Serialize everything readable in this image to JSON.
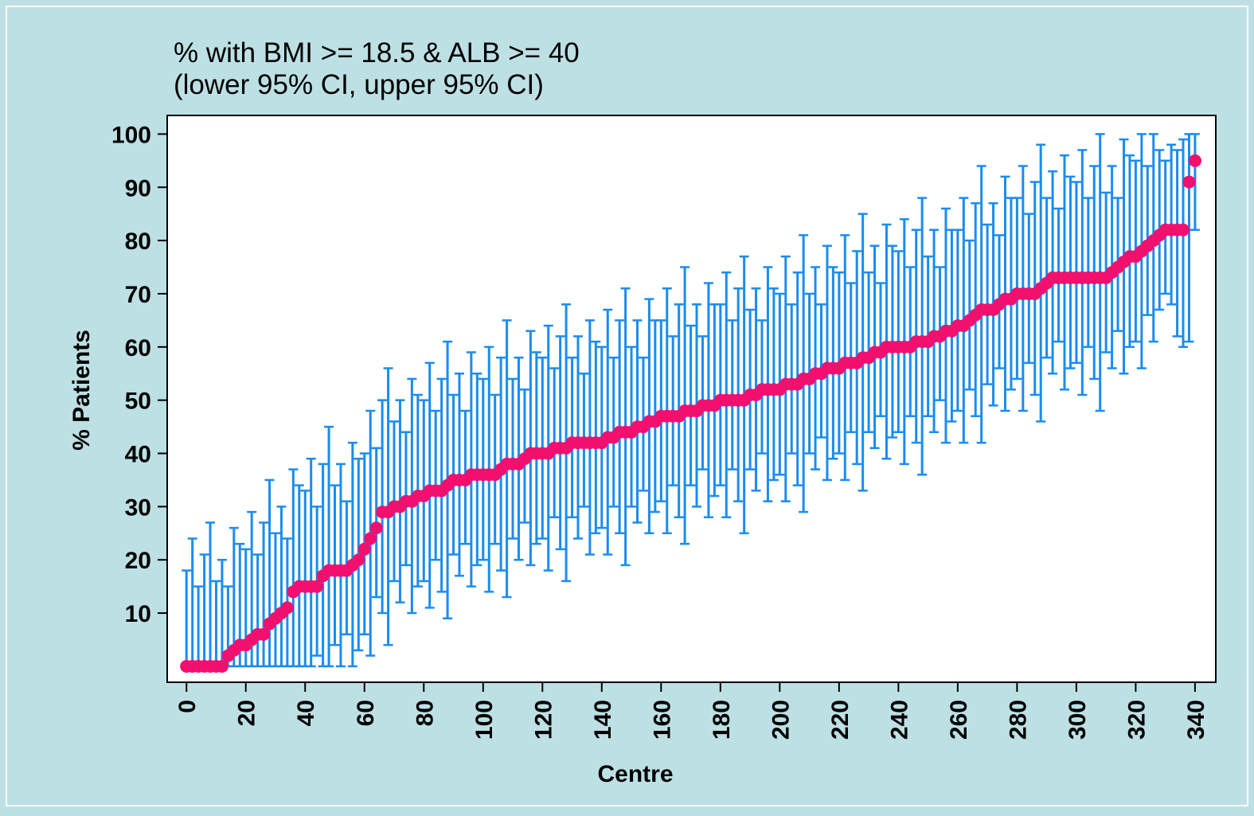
{
  "chart_data": {
    "type": "errorbar",
    "title": "% with BMI >= 18.5 & ALB >= 40",
    "subtitle": "(lower 95% CI, upper 95% CI)",
    "x_label": "Centre",
    "y_label": "% Patients",
    "xlim": [
      -6.5,
      347
    ],
    "ylim": [
      -3,
      103.5
    ],
    "xticks": [
      0,
      20,
      40,
      60,
      80,
      100,
      120,
      140,
      160,
      180,
      200,
      220,
      240,
      260,
      280,
      300,
      320,
      340
    ],
    "yticks": [
      10,
      20,
      30,
      40,
      50,
      60,
      70,
      80,
      90,
      100
    ],
    "color": "#f2106e",
    "error_color": "#1a8cf0",
    "x": [
      0,
      2,
      4,
      6,
      8,
      10,
      12,
      14,
      16,
      18,
      20,
      22,
      24,
      26,
      28,
      30,
      32,
      34,
      36,
      38,
      40,
      42,
      44,
      46,
      48,
      50,
      52,
      54,
      56,
      58,
      60,
      62,
      64,
      66,
      68,
      70,
      72,
      74,
      76,
      78,
      80,
      82,
      84,
      86,
      88,
      90,
      92,
      94,
      96,
      98,
      100,
      102,
      104,
      106,
      108,
      110,
      112,
      114,
      116,
      118,
      120,
      122,
      124,
      126,
      128,
      130,
      132,
      134,
      136,
      138,
      140,
      142,
      144,
      146,
      148,
      150,
      152,
      154,
      156,
      158,
      160,
      162,
      164,
      166,
      168,
      170,
      172,
      174,
      176,
      178,
      180,
      182,
      184,
      186,
      188,
      190,
      192,
      194,
      196,
      198,
      200,
      202,
      204,
      206,
      208,
      210,
      212,
      214,
      216,
      218,
      220,
      222,
      224,
      226,
      228,
      230,
      232,
      234,
      236,
      238,
      240,
      242,
      244,
      246,
      248,
      250,
      252,
      254,
      256,
      258,
      260,
      262,
      264,
      266,
      268,
      270,
      272,
      274,
      276,
      278,
      280,
      282,
      284,
      286,
      288,
      290,
      292,
      294,
      296,
      298,
      300,
      302,
      304,
      306,
      308,
      310,
      312,
      314,
      316,
      318,
      320,
      322,
      324,
      326,
      328,
      330,
      332,
      334,
      336,
      338,
      340
    ],
    "values": [
      0,
      0,
      0,
      0,
      0,
      0,
      0,
      2,
      3,
      4,
      4,
      5,
      6,
      6,
      8,
      9,
      10,
      11,
      14,
      15,
      15,
      15,
      15,
      17,
      18,
      18,
      18,
      18,
      19,
      20,
      22,
      24,
      26,
      29,
      29,
      30,
      30,
      31,
      31,
      32,
      32,
      33,
      33,
      33,
      34,
      35,
      35,
      35,
      36,
      36,
      36,
      36,
      36,
      37,
      38,
      38,
      38,
      39,
      40,
      40,
      40,
      40,
      41,
      41,
      41,
      42,
      42,
      42,
      42,
      42,
      42,
      43,
      43,
      44,
      44,
      44,
      45,
      45,
      46,
      46,
      47,
      47,
      47,
      47,
      48,
      48,
      48,
      49,
      49,
      49,
      50,
      50,
      50,
      50,
      50,
      51,
      51,
      52,
      52,
      52,
      52,
      53,
      53,
      53,
      54,
      54,
      55,
      55,
      56,
      56,
      56,
      57,
      57,
      57,
      58,
      58,
      59,
      59,
      60,
      60,
      60,
      60,
      60,
      61,
      61,
      61,
      62,
      62,
      63,
      63,
      64,
      64,
      65,
      66,
      67,
      67,
      67,
      68,
      69,
      69,
      70,
      70,
      70,
      70,
      71,
      72,
      73,
      73,
      73,
      73,
      73,
      73,
      73,
      73,
      73,
      73,
      74,
      75,
      76,
      77,
      77,
      78,
      79,
      80,
      81,
      82,
      82,
      82,
      82,
      91,
      95
    ],
    "lower": [
      0,
      0,
      0,
      0,
      0,
      0,
      0,
      0,
      0,
      0,
      0,
      0,
      0,
      0,
      0,
      0,
      0,
      0,
      0,
      0,
      0,
      0,
      2,
      0,
      0,
      4,
      0,
      6,
      0,
      3,
      6,
      2,
      13,
      10,
      4,
      16,
      12,
      19,
      10,
      15,
      16,
      11,
      20,
      14,
      9,
      21,
      17,
      23,
      15,
      19,
      20,
      14,
      23,
      18,
      13,
      24,
      20,
      27,
      19,
      23,
      24,
      18,
      28,
      22,
      16,
      28,
      24,
      30,
      21,
      25,
      26,
      21,
      30,
      25,
      19,
      30,
      27,
      33,
      25,
      29,
      31,
      25,
      34,
      28,
      23,
      34,
      30,
      37,
      28,
      32,
      34,
      28,
      37,
      31,
      25,
      37,
      33,
      40,
      31,
      35,
      36,
      31,
      40,
      34,
      29,
      40,
      37,
      43,
      35,
      39,
      40,
      35,
      44,
      38,
      33,
      44,
      41,
      47,
      39,
      43,
      44,
      38,
      47,
      42,
      36,
      47,
      44,
      50,
      42,
      46,
      48,
      42,
      52,
      47,
      42,
      53,
      49,
      56,
      48,
      52,
      54,
      48,
      57,
      51,
      46,
      58,
      55,
      61,
      52,
      56,
      57,
      51,
      60,
      54,
      48,
      59,
      56,
      63,
      55,
      60,
      61,
      56,
      66,
      61,
      67,
      70,
      68,
      62,
      60,
      61,
      82
    ],
    "upper": [
      18,
      24,
      15,
      21,
      27,
      16,
      20,
      15,
      26,
      23,
      22,
      29,
      21,
      27,
      35,
      25,
      30,
      24,
      37,
      34,
      33,
      39,
      30,
      38,
      45,
      34,
      38,
      31,
      42,
      39,
      40,
      48,
      41,
      50,
      56,
      46,
      50,
      44,
      54,
      51,
      50,
      57,
      48,
      54,
      61,
      51,
      55,
      48,
      59,
      55,
      54,
      60,
      51,
      58,
      65,
      54,
      58,
      52,
      63,
      59,
      58,
      64,
      56,
      62,
      68,
      58,
      62,
      55,
      65,
      61,
      60,
      67,
      58,
      65,
      71,
      60,
      65,
      58,
      69,
      65,
      65,
      71,
      62,
      68,
      75,
      64,
      68,
      62,
      72,
      68,
      68,
      74,
      65,
      71,
      77,
      67,
      71,
      65,
      75,
      71,
      70,
      77,
      68,
      74,
      81,
      70,
      75,
      68,
      79,
      75,
      74,
      81,
      72,
      78,
      85,
      74,
      79,
      72,
      83,
      79,
      78,
      84,
      75,
      82,
      88,
      77,
      82,
      75,
      86,
      82,
      82,
      88,
      80,
      87,
      94,
      83,
      87,
      81,
      92,
      88,
      88,
      94,
      85,
      91,
      98,
      88,
      93,
      86,
      96,
      92,
      91,
      97,
      88,
      94,
      100,
      89,
      94,
      88,
      99,
      96,
      95,
      100,
      94,
      100,
      97,
      95,
      98,
      97,
      99,
      100,
      100
    ]
  }
}
